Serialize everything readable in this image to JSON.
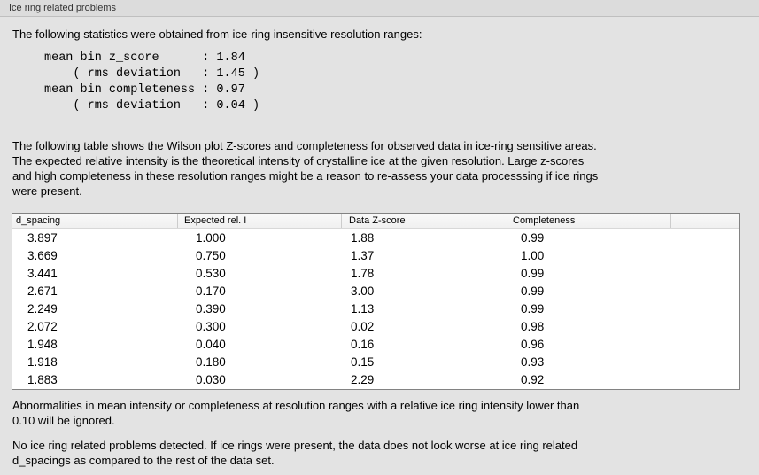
{
  "panel": {
    "title": "Ice ring related problems"
  },
  "intro": {
    "text": "The following statistics were obtained from ice-ring insensitive resolution ranges:",
    "stats_block": "mean bin z_score      : 1.84\n    ( rms deviation   : 1.45 )\nmean bin completeness : 0.97\n    ( rms deviation   : 0.04 )"
  },
  "description": {
    "text": "The following table shows the Wilson plot Z-scores and completeness for observed data in ice-ring sensitive areas.\nThe expected relative intensity is the theoretical intensity of crystalline ice at the given resolution. Large z-scores\nand high completeness in these resolution ranges might be a reason to re-assess your data processsing if ice rings\nwere present."
  },
  "table": {
    "columns": [
      "d_spacing",
      "Expected rel. I",
      "Data Z-score",
      "Completeness",
      ""
    ],
    "rows": [
      [
        "3.897",
        "1.000",
        "1.88",
        "0.99"
      ],
      [
        "3.669",
        "0.750",
        "1.37",
        "1.00"
      ],
      [
        "3.441",
        "0.530",
        "1.78",
        "0.99"
      ],
      [
        "2.671",
        "0.170",
        "3.00",
        "0.99"
      ],
      [
        "2.249",
        "0.390",
        "1.13",
        "0.99"
      ],
      [
        "2.072",
        "0.300",
        "0.02",
        "0.98"
      ],
      [
        "1.948",
        "0.040",
        "0.16",
        "0.96"
      ],
      [
        "1.918",
        "0.180",
        "0.15",
        "0.93"
      ],
      [
        "1.883",
        "0.030",
        "2.29",
        "0.92"
      ]
    ]
  },
  "footer": {
    "ignore_note": "Abnormalities in mean intensity or completeness at resolution ranges with a relative ice ring intensity lower than\n0.10 will be ignored.",
    "conclusion": "No ice ring related problems detected. If ice rings were present, the data does not look worse at ice ring related\nd_spacings as compared to the rest of the data set."
  },
  "colors": {
    "panel_background": "#e3e3e3",
    "header_strip_background": "#dcdcdc",
    "table_border": "#828282",
    "table_header_background": "#f5f5f5",
    "text": "#000000"
  }
}
